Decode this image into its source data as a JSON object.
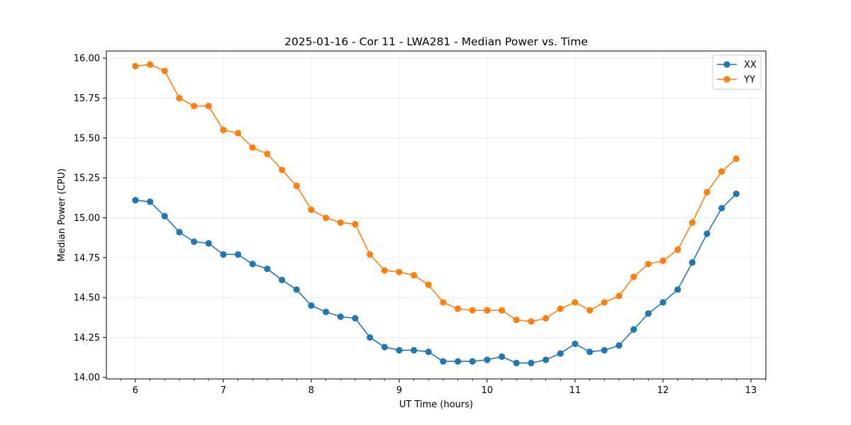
{
  "chart_data": {
    "type": "line",
    "title": "2025-01-16 - Cor 11 - LWA281 - Median Power vs. Time",
    "xlabel": "UT Time (hours)",
    "ylabel": "Median Power (CPU)",
    "xlim": [
      5.67,
      13.17
    ],
    "ylim": [
      13.99,
      16.045
    ],
    "xticks": [
      6,
      7,
      8,
      9,
      10,
      11,
      12,
      13
    ],
    "xtick_labels": [
      "6",
      "7",
      "8",
      "9",
      "10",
      "11",
      "12",
      "13"
    ],
    "yticks": [
      14.0,
      14.25,
      14.5,
      14.75,
      15.0,
      15.25,
      15.5,
      15.75,
      16.0
    ],
    "ytick_labels": [
      "14.00",
      "14.25",
      "14.50",
      "14.75",
      "15.00",
      "15.25",
      "15.50",
      "15.75",
      "16.00"
    ],
    "grid": true,
    "legend_position": "top-right",
    "x": [
      6.0,
      6.167,
      6.333,
      6.5,
      6.667,
      6.833,
      7.0,
      7.167,
      7.333,
      7.5,
      7.667,
      7.833,
      8.0,
      8.167,
      8.333,
      8.5,
      8.667,
      8.833,
      9.0,
      9.167,
      9.333,
      9.5,
      9.667,
      9.833,
      10.0,
      10.167,
      10.333,
      10.5,
      10.667,
      10.833,
      11.0,
      11.167,
      11.333,
      11.5,
      11.667,
      11.833,
      12.0,
      12.167,
      12.333,
      12.5,
      12.667,
      12.833
    ],
    "series": [
      {
        "name": "XX",
        "color": "#1f77b4",
        "values": [
          15.11,
          15.1,
          15.01,
          14.91,
          14.85,
          14.84,
          14.77,
          14.77,
          14.71,
          14.68,
          14.61,
          14.55,
          14.45,
          14.41,
          14.38,
          14.37,
          14.25,
          14.19,
          14.17,
          14.17,
          14.16,
          14.1,
          14.1,
          14.1,
          14.11,
          14.13,
          14.09,
          14.09,
          14.11,
          14.15,
          14.21,
          14.16,
          14.17,
          14.2,
          14.3,
          14.4,
          14.47,
          14.55,
          14.72,
          14.9,
          15.06,
          15.15
        ]
      },
      {
        "name": "YY",
        "color": "#ff7f0e",
        "values": [
          15.95,
          15.96,
          15.92,
          15.75,
          15.7,
          15.7,
          15.55,
          15.53,
          15.44,
          15.4,
          15.3,
          15.2,
          15.05,
          15.0,
          14.97,
          14.96,
          14.77,
          14.67,
          14.66,
          14.64,
          14.58,
          14.47,
          14.43,
          14.42,
          14.42,
          14.42,
          14.36,
          14.35,
          14.37,
          14.43,
          14.47,
          14.42,
          14.47,
          14.51,
          14.63,
          14.71,
          14.73,
          14.8,
          14.97,
          15.16,
          15.29,
          15.37
        ]
      }
    ]
  }
}
